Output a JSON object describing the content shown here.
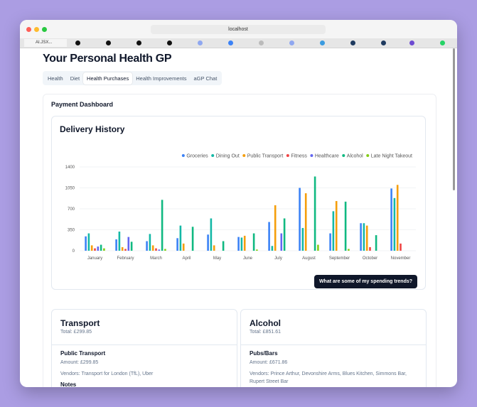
{
  "browser": {
    "url": "localhost",
    "tab": "AI.JSX..."
  },
  "header": {
    "title": "Your Personal Health GP"
  },
  "nav": {
    "tabs": [
      "Health",
      "Diet",
      "Health Purchases",
      "Health Improvements",
      "aGP Chat"
    ],
    "active": 2
  },
  "section": {
    "title": "Payment Dashboard"
  },
  "chart_card": {
    "title": "Delivery History",
    "button": "What are some of my spending trends?"
  },
  "chart_data": {
    "type": "bar",
    "legend": "top-right",
    "grid": true,
    "categories": [
      "January",
      "February",
      "March",
      "April",
      "May",
      "June",
      "July",
      "August",
      "September",
      "October",
      "November"
    ],
    "ylim": [
      0,
      1400
    ],
    "yticks": [
      0,
      350,
      700,
      1050,
      1400
    ],
    "series": [
      {
        "name": "Groceries",
        "color": "#3b82f6",
        "values": [
          240,
          190,
          160,
          210,
          270,
          230,
          480,
          1050,
          290,
          460,
          1040
        ]
      },
      {
        "name": "Dining Out",
        "color": "#14b8a6",
        "values": [
          290,
          320,
          280,
          420,
          540,
          220,
          80,
          380,
          660,
          460,
          880
        ]
      },
      {
        "name": "Public Transport",
        "color": "#f59e0b",
        "values": [
          90,
          60,
          90,
          120,
          90,
          250,
          760,
          960,
          830,
          420,
          1100
        ]
      },
      {
        "name": "Fitness",
        "color": "#ef4444",
        "values": [
          40,
          30,
          40,
          0,
          0,
          0,
          0,
          0,
          0,
          60,
          120
        ]
      },
      {
        "name": "Healthcare",
        "color": "#6366f1",
        "values": [
          70,
          230,
          20,
          0,
          0,
          0,
          290,
          0,
          0,
          0,
          0
        ]
      },
      {
        "name": "Alcohol",
        "color": "#10b981",
        "values": [
          100,
          150,
          850,
          400,
          160,
          290,
          540,
          1240,
          820,
          260,
          0
        ]
      },
      {
        "name": "Late Night Takeout",
        "color": "#84cc16",
        "values": [
          40,
          0,
          30,
          0,
          0,
          20,
          0,
          100,
          30,
          0,
          0
        ]
      }
    ]
  },
  "cards": [
    {
      "title": "Transport",
      "total": "Total: £299.85",
      "items": [
        {
          "name": "Public Transport",
          "amount": "Amount: £299.85",
          "vendors": "Vendors: Transport for London (TfL), Uber",
          "notes": "Notes"
        }
      ]
    },
    {
      "title": "Alcohol",
      "total": "Total: £851.61",
      "items": [
        {
          "name": "Pubs/Bars",
          "amount": "Amount: £671.86",
          "vendors": "Vendors: Prince Arthur, Devonshire Arms, Blues Kitchen, Simmons Bar, Rupert Street Bar"
        }
      ]
    }
  ]
}
